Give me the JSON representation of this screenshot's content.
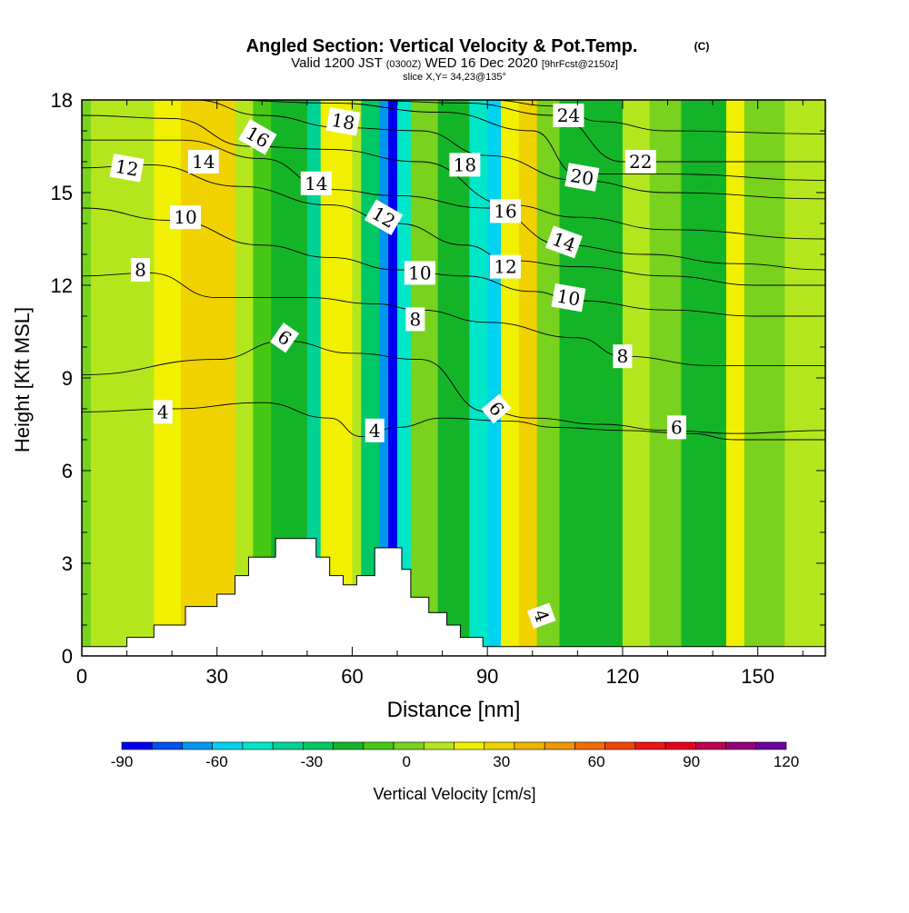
{
  "header": {
    "title": "Angled Section: Vertical Velocity & Pot.Temp.",
    "copyright": "(C)",
    "valid_prefix": "Valid 1200 JST",
    "valid_utc": "(0300Z)",
    "valid_date": "WED 16 Dec 2020",
    "forecast": "[9hrFcst@2150z]",
    "slice": "slice X,Y= 34,23@135°"
  },
  "chart_data": {
    "type": "heatmap",
    "xlabel": "Distance [nm]",
    "ylabel": "Height [Kft MSL]",
    "xlim": [
      0,
      165
    ],
    "ylim": [
      0,
      18
    ],
    "x_ticks": [
      0,
      30,
      60,
      90,
      120,
      150
    ],
    "y_ticks": [
      0,
      3,
      6,
      9,
      12,
      15,
      18
    ],
    "colorbar": {
      "label": "Vertical Velocity [cm/s]",
      "ticks": [
        -90,
        -60,
        -30,
        0,
        30,
        60,
        90,
        120
      ],
      "levels": [
        -90,
        -80,
        -70,
        -60,
        -50,
        -40,
        -30,
        -20,
        -10,
        0,
        10,
        20,
        30,
        40,
        50,
        60,
        70,
        80,
        90,
        100,
        110,
        120
      ],
      "colors": [
        "#0000f0",
        "#0050f0",
        "#0096f0",
        "#00d2f0",
        "#00e6c8",
        "#00d296",
        "#00c864",
        "#14b428",
        "#46c814",
        "#78d21e",
        "#b4e61e",
        "#f0f000",
        "#f0d200",
        "#f0b400",
        "#f09600",
        "#f06e00",
        "#f04600",
        "#f01414",
        "#e6001e",
        "#be0050",
        "#960078",
        "#6e00a0"
      ]
    },
    "velocity_columns": [
      {
        "x0": 0,
        "x1": 2,
        "w": 5
      },
      {
        "x0": 2,
        "x1": 16,
        "w": 10
      },
      {
        "x0": 16,
        "x1": 22,
        "w": 25
      },
      {
        "x0": 22,
        "x1": 34,
        "w": 32
      },
      {
        "x0": 34,
        "x1": 38,
        "w": 12
      },
      {
        "x0": 38,
        "x1": 42,
        "w": -5
      },
      {
        "x0": 42,
        "x1": 50,
        "w": -20
      },
      {
        "x0": 50,
        "x1": 53,
        "w": -32
      },
      {
        "x0": 53,
        "x1": 60,
        "w": 25
      },
      {
        "x0": 60,
        "x1": 62,
        "w": 10
      },
      {
        "x0": 62,
        "x1": 66,
        "w": -30
      },
      {
        "x0": 66,
        "x1": 68,
        "w": -70
      },
      {
        "x0": 68,
        "x1": 70,
        "w": -90
      },
      {
        "x0": 70,
        "x1": 73,
        "w": -50
      },
      {
        "x0": 73,
        "x1": 79,
        "w": 5
      },
      {
        "x0": 79,
        "x1": 86,
        "w": -20
      },
      {
        "x0": 86,
        "x1": 90,
        "w": -45
      },
      {
        "x0": 90,
        "x1": 93,
        "w": -60
      },
      {
        "x0": 93,
        "x1": 97,
        "w": 20
      },
      {
        "x0": 97,
        "x1": 101,
        "w": 30
      },
      {
        "x0": 101,
        "x1": 106,
        "w": 5
      },
      {
        "x0": 106,
        "x1": 120,
        "w": -15
      },
      {
        "x0": 120,
        "x1": 126,
        "w": 12
      },
      {
        "x0": 126,
        "x1": 133,
        "w": 0
      },
      {
        "x0": 133,
        "x1": 143,
        "w": -18
      },
      {
        "x0": 143,
        "x1": 147,
        "w": 25
      },
      {
        "x0": 147,
        "x1": 156,
        "w": 0
      },
      {
        "x0": 156,
        "x1": 165,
        "w": 10
      }
    ],
    "terrain": [
      [
        0,
        0.3
      ],
      [
        10,
        0.3
      ],
      [
        10,
        0.6
      ],
      [
        16,
        0.6
      ],
      [
        16,
        1.0
      ],
      [
        23,
        1.0
      ],
      [
        23,
        1.6
      ],
      [
        30,
        1.6
      ],
      [
        30,
        2.0
      ],
      [
        34,
        2.0
      ],
      [
        34,
        2.6
      ],
      [
        37,
        2.6
      ],
      [
        37,
        3.2
      ],
      [
        43,
        3.2
      ],
      [
        43,
        3.8
      ],
      [
        52,
        3.8
      ],
      [
        52,
        3.2
      ],
      [
        55,
        3.2
      ],
      [
        55,
        2.6
      ],
      [
        58,
        2.6
      ],
      [
        58,
        2.3
      ],
      [
        61,
        2.3
      ],
      [
        61,
        2.6
      ],
      [
        65,
        2.6
      ],
      [
        65,
        3.5
      ],
      [
        71,
        3.5
      ],
      [
        71,
        2.8
      ],
      [
        73,
        2.8
      ],
      [
        73,
        1.9
      ],
      [
        77,
        1.9
      ],
      [
        77,
        1.4
      ],
      [
        81,
        1.4
      ],
      [
        81,
        1.0
      ],
      [
        84,
        1.0
      ],
      [
        84,
        0.6
      ],
      [
        89,
        0.6
      ],
      [
        89,
        0.3
      ],
      [
        165,
        0.3
      ]
    ],
    "contours": [
      {
        "theta": 4,
        "points": [
          [
            0,
            7.9
          ],
          [
            20,
            8.0
          ],
          [
            40,
            8.2
          ],
          [
            55,
            7.7
          ],
          [
            62,
            7.1
          ],
          [
            70,
            7.4
          ],
          [
            80,
            7.7
          ],
          [
            95,
            7.6
          ],
          [
            105,
            7.4
          ],
          [
            120,
            7.3
          ],
          [
            135,
            7.2
          ],
          [
            145,
            7.0
          ],
          [
            165,
            7.0
          ]
        ]
      },
      {
        "theta": 6,
        "points": [
          [
            0,
            9.1
          ],
          [
            30,
            9.6
          ],
          [
            45,
            10.2
          ],
          [
            60,
            9.8
          ],
          [
            75,
            9.6
          ],
          [
            90,
            7.9
          ],
          [
            100,
            7.7
          ],
          [
            115,
            7.5
          ],
          [
            130,
            7.3
          ],
          [
            145,
            7.2
          ],
          [
            165,
            7.3
          ]
        ]
      },
      {
        "theta": 8,
        "points": [
          [
            0,
            12.3
          ],
          [
            15,
            12.4
          ],
          [
            30,
            11.6
          ],
          [
            50,
            11.6
          ],
          [
            65,
            11.4
          ],
          [
            75,
            11.2
          ],
          [
            90,
            10.8
          ],
          [
            110,
            10.3
          ],
          [
            120,
            9.7
          ],
          [
            140,
            9.4
          ],
          [
            165,
            9.4
          ]
        ]
      },
      {
        "theta": 10,
        "points": [
          [
            0,
            14.5
          ],
          [
            20,
            14.1
          ],
          [
            40,
            13.3
          ],
          [
            55,
            12.9
          ],
          [
            70,
            12.5
          ],
          [
            85,
            12.3
          ],
          [
            100,
            11.8
          ],
          [
            110,
            11.5
          ],
          [
            130,
            11.2
          ],
          [
            150,
            11.0
          ],
          [
            165,
            11.0
          ]
        ]
      },
      {
        "theta": 12,
        "points": [
          [
            0,
            15.8
          ],
          [
            15,
            15.9
          ],
          [
            35,
            15.2
          ],
          [
            55,
            14.6
          ],
          [
            70,
            14.0
          ],
          [
            85,
            13.3
          ],
          [
            95,
            12.8
          ],
          [
            110,
            12.6
          ],
          [
            130,
            12.3
          ],
          [
            150,
            12.0
          ],
          [
            165,
            12.0
          ]
        ]
      },
      {
        "theta": 14,
        "points": [
          [
            0,
            16.7
          ],
          [
            22,
            16.7
          ],
          [
            40,
            16.1
          ],
          [
            55,
            15.1
          ],
          [
            70,
            14.9
          ],
          [
            90,
            14.5
          ],
          [
            107,
            13.3
          ],
          [
            125,
            13.0
          ],
          [
            145,
            12.7
          ],
          [
            165,
            12.5
          ]
        ]
      },
      {
        "theta": 16,
        "points": [
          [
            0,
            17.5
          ],
          [
            20,
            17.4
          ],
          [
            37,
            16.5
          ],
          [
            55,
            16.4
          ],
          [
            75,
            16.0
          ],
          [
            95,
            14.6
          ],
          [
            110,
            14.2
          ],
          [
            130,
            13.8
          ],
          [
            165,
            13.5
          ]
        ]
      },
      {
        "theta": 18,
        "points": [
          [
            0,
            18.0
          ],
          [
            25,
            18.0
          ],
          [
            40,
            17.5
          ],
          [
            58,
            17.1
          ],
          [
            75,
            17.0
          ],
          [
            90,
            16.2
          ],
          [
            110,
            15.4
          ],
          [
            130,
            15.0
          ],
          [
            165,
            14.8
          ]
        ]
      },
      {
        "theta": 20,
        "points": [
          [
            30,
            18.0
          ],
          [
            55,
            17.9
          ],
          [
            80,
            17.6
          ],
          [
            100,
            17.0
          ],
          [
            110,
            15.6
          ],
          [
            130,
            15.6
          ],
          [
            165,
            15.4
          ]
        ]
      },
      {
        "theta": 22,
        "points": [
          [
            60,
            18.0
          ],
          [
            85,
            17.9
          ],
          [
            105,
            17.5
          ],
          [
            120,
            16.0
          ],
          [
            140,
            16.0
          ],
          [
            165,
            16.0
          ]
        ]
      },
      {
        "theta": 24,
        "points": [
          [
            90,
            18.0
          ],
          [
            105,
            17.8
          ],
          [
            115,
            17.3
          ],
          [
            130,
            17.0
          ],
          [
            165,
            16.9
          ]
        ]
      }
    ],
    "labels": [
      {
        "text": "4",
        "x": 18,
        "y": 7.9,
        "rot": 0
      },
      {
        "text": "4",
        "x": 65,
        "y": 7.3,
        "rot": 0
      },
      {
        "text": "4",
        "x": 102,
        "y": 1.3,
        "rot": 70
      },
      {
        "text": "6",
        "x": 45,
        "y": 10.3,
        "rot": 35
      },
      {
        "text": "6",
        "x": 92,
        "y": 8.0,
        "rot": 50
      },
      {
        "text": "6",
        "x": 132,
        "y": 7.4,
        "rot": 0
      },
      {
        "text": "8",
        "x": 13,
        "y": 12.5,
        "rot": 0
      },
      {
        "text": "8",
        "x": 74,
        "y": 10.9,
        "rot": 0
      },
      {
        "text": "8",
        "x": 120,
        "y": 9.7,
        "rot": 0
      },
      {
        "text": "10",
        "x": 23,
        "y": 14.2,
        "rot": 0
      },
      {
        "text": "10",
        "x": 75,
        "y": 12.4,
        "rot": 0
      },
      {
        "text": "10",
        "x": 108,
        "y": 11.6,
        "rot": 10
      },
      {
        "text": "12",
        "x": 10,
        "y": 15.8,
        "rot": 10
      },
      {
        "text": "12",
        "x": 67,
        "y": 14.2,
        "rot": 30
      },
      {
        "text": "12",
        "x": 94,
        "y": 12.6,
        "rot": 0
      },
      {
        "text": "14",
        "x": 27,
        "y": 16.0,
        "rot": 0
      },
      {
        "text": "14",
        "x": 52,
        "y": 15.3,
        "rot": 0
      },
      {
        "text": "14",
        "x": 107,
        "y": 13.4,
        "rot": 20
      },
      {
        "text": "16",
        "x": 39,
        "y": 16.8,
        "rot": 30
      },
      {
        "text": "16",
        "x": 94,
        "y": 14.4,
        "rot": 0
      },
      {
        "text": "18",
        "x": 58,
        "y": 17.3,
        "rot": 10
      },
      {
        "text": "18",
        "x": 85,
        "y": 15.9,
        "rot": 0
      },
      {
        "text": "20",
        "x": 111,
        "y": 15.5,
        "rot": 10
      },
      {
        "text": "22",
        "x": 124,
        "y": 16.0,
        "rot": 0
      },
      {
        "text": "24",
        "x": 108,
        "y": 17.5,
        "rot": 0
      }
    ]
  }
}
